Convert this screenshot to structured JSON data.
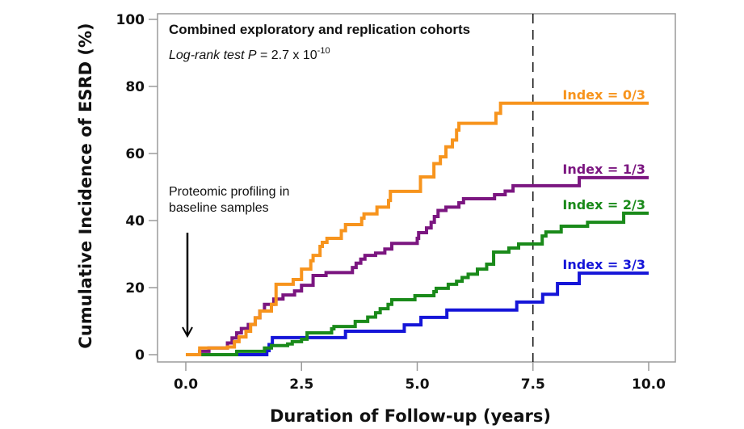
{
  "chart_data": {
    "type": "line",
    "step": true,
    "title": "Combined exploratory and replication cohorts",
    "subtitle": {
      "prefix_italic": "Log-rank test P",
      "equals": " = 2.7 x 10",
      "exponent": "-10"
    },
    "xlabel": "Duration of Follow-up (years)",
    "ylabel": "Cumulative Incidence of ESRD (%)",
    "xlim": [
      0,
      10
    ],
    "ylim": [
      0,
      100
    ],
    "xticks": [
      0,
      2.5,
      5,
      7.5,
      10
    ],
    "xtick_labels": [
      "0.0",
      "2.5",
      "5.0",
      "7.5",
      "10.0"
    ],
    "yticks": [
      0,
      20,
      40,
      60,
      80,
      100
    ],
    "ytick_labels": [
      "0",
      "20",
      "40",
      "60",
      "80",
      "100"
    ],
    "grid": false,
    "reference_line": {
      "x": 7.5,
      "style": "dashed",
      "color": "#111111"
    },
    "annotation": {
      "lines": [
        "Proteomic profiling in",
        "baseline samples"
      ],
      "arrow_at_x": 0
    },
    "series": [
      {
        "name": "Index = 0/3",
        "color": "#F7941D",
        "points": [
          [
            0,
            0
          ],
          [
            0.3,
            2
          ],
          [
            0.9,
            2.3
          ],
          [
            1.05,
            3.9
          ],
          [
            1.15,
            5.3
          ],
          [
            1.3,
            7
          ],
          [
            1.4,
            9
          ],
          [
            1.5,
            11
          ],
          [
            1.6,
            13
          ],
          [
            1.85,
            15
          ],
          [
            1.95,
            21
          ],
          [
            2.32,
            22.4
          ],
          [
            2.5,
            25.5
          ],
          [
            2.7,
            28
          ],
          [
            2.75,
            29.6
          ],
          [
            2.9,
            32.3
          ],
          [
            2.95,
            33.5
          ],
          [
            3.05,
            34.7
          ],
          [
            3.36,
            37
          ],
          [
            3.45,
            38.8
          ],
          [
            3.8,
            40.7
          ],
          [
            3.85,
            42
          ],
          [
            4.13,
            44
          ],
          [
            4.38,
            46
          ],
          [
            4.42,
            48.7
          ],
          [
            5.07,
            53
          ],
          [
            5.36,
            57
          ],
          [
            5.5,
            59
          ],
          [
            5.62,
            62
          ],
          [
            5.76,
            64
          ],
          [
            5.85,
            67
          ],
          [
            5.9,
            69
          ],
          [
            6.7,
            72
          ],
          [
            6.8,
            75
          ],
          [
            10,
            75
          ]
        ]
      },
      {
        "name": "Index = 1/3",
        "color": "#7B1680",
        "points": [
          [
            0,
            0
          ],
          [
            0.3,
            1
          ],
          [
            0.5,
            2
          ],
          [
            0.9,
            3.5
          ],
          [
            1.0,
            5
          ],
          [
            1.1,
            6.5
          ],
          [
            1.2,
            7.8
          ],
          [
            1.35,
            9
          ],
          [
            1.5,
            11
          ],
          [
            1.6,
            13
          ],
          [
            1.7,
            15
          ],
          [
            1.9,
            16.6
          ],
          [
            2.1,
            17.8
          ],
          [
            2.35,
            19
          ],
          [
            2.5,
            20.7
          ],
          [
            2.75,
            23.6
          ],
          [
            3.03,
            24.5
          ],
          [
            3.6,
            26
          ],
          [
            3.68,
            27.3
          ],
          [
            3.78,
            28.5
          ],
          [
            3.87,
            29.6
          ],
          [
            4.1,
            30.3
          ],
          [
            4.3,
            31.5
          ],
          [
            4.45,
            33.2
          ],
          [
            5.0,
            34.7
          ],
          [
            5.03,
            36.4
          ],
          [
            5.2,
            37.8
          ],
          [
            5.3,
            39.5
          ],
          [
            5.37,
            41.2
          ],
          [
            5.45,
            43
          ],
          [
            5.62,
            44
          ],
          [
            5.9,
            45.3
          ],
          [
            6.0,
            46.5
          ],
          [
            6.67,
            47.7
          ],
          [
            6.9,
            48.8
          ],
          [
            7.07,
            50.4
          ],
          [
            8.5,
            52.8
          ],
          [
            10,
            52.8
          ]
        ]
      },
      {
        "name": "Index = 2/3",
        "color": "#1A8A1A",
        "points": [
          [
            0,
            0
          ],
          [
            1.1,
            1
          ],
          [
            1.7,
            2
          ],
          [
            1.85,
            2.7
          ],
          [
            2.2,
            3.2
          ],
          [
            2.3,
            3.9
          ],
          [
            2.5,
            4.6
          ],
          [
            2.62,
            6.5
          ],
          [
            3.15,
            7.7
          ],
          [
            3.2,
            8.4
          ],
          [
            3.66,
            9.9
          ],
          [
            3.93,
            11.2
          ],
          [
            4.1,
            12.5
          ],
          [
            4.2,
            13.7
          ],
          [
            4.37,
            15
          ],
          [
            4.45,
            16.4
          ],
          [
            4.95,
            17.6
          ],
          [
            5.36,
            18.8
          ],
          [
            5.41,
            19.8
          ],
          [
            5.67,
            21
          ],
          [
            5.85,
            21.9
          ],
          [
            5.97,
            23
          ],
          [
            6.1,
            24
          ],
          [
            6.3,
            25.5
          ],
          [
            6.5,
            27
          ],
          [
            6.65,
            30.6
          ],
          [
            6.98,
            31.8
          ],
          [
            7.19,
            33
          ],
          [
            7.7,
            35.4
          ],
          [
            7.78,
            36.6
          ],
          [
            8.11,
            38.3
          ],
          [
            8.68,
            39.5
          ],
          [
            9.46,
            42.2
          ],
          [
            10,
            42.2
          ]
        ]
      },
      {
        "name": "Index = 3/3",
        "color": "#1515D8",
        "points": [
          [
            0,
            0
          ],
          [
            1.75,
            1.2
          ],
          [
            1.8,
            3
          ],
          [
            1.87,
            5.1
          ],
          [
            3.45,
            7
          ],
          [
            4.72,
            8.9
          ],
          [
            5.08,
            11.1
          ],
          [
            5.64,
            13.3
          ],
          [
            7.15,
            15.7
          ],
          [
            7.71,
            18
          ],
          [
            8.03,
            21.2
          ],
          [
            8.5,
            24.3
          ],
          [
            10,
            24.3
          ]
        ]
      }
    ]
  }
}
